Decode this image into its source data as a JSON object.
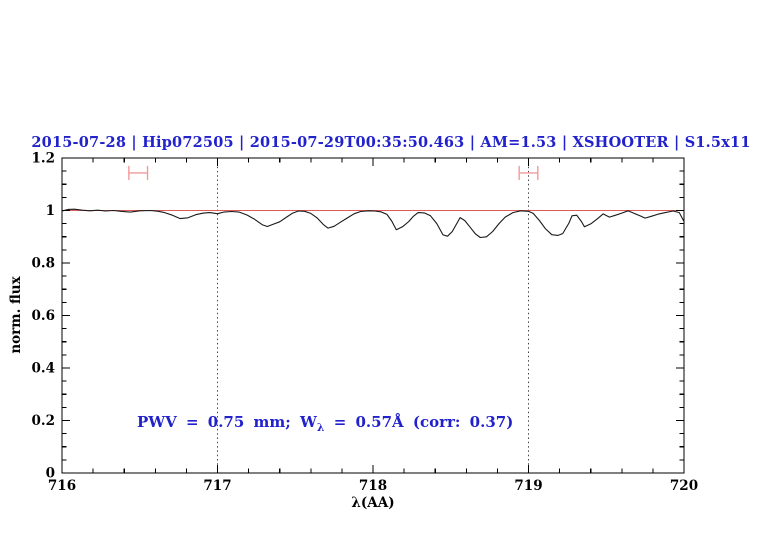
{
  "chart_data": {
    "type": "line",
    "title": "2015-07-28 | Hip072505 | 2015-07-29T00:35:50.463 | AM=1.53 | XSHOOTER | S1.5x11",
    "title_color": "#2222cc",
    "xlabel": "λ(AA)",
    "ylabel": "norm. flux",
    "xlim": [
      716,
      720
    ],
    "ylim": [
      0,
      1.2
    ],
    "grid": "off",
    "legend": "none",
    "x_major_ticks": [
      716,
      717,
      718,
      719,
      720
    ],
    "x_tick_labels": [
      "716",
      "717",
      "718",
      "719",
      "720"
    ],
    "x_minor_step": 0.2,
    "y_major_ticks": [
      0,
      0.2,
      0.4,
      0.6,
      0.8,
      1,
      1.2
    ],
    "y_tick_labels": [
      "0",
      "0.2",
      "0.4",
      "0.6",
      "0.8",
      "1",
      "1.2"
    ],
    "y_minor_step": 0.05,
    "dotted_guides_x": [
      717,
      719
    ],
    "guide_color": "#333333",
    "continuum_line": {
      "y": 1.0,
      "color": "#e05a5a"
    },
    "telluric_markers": {
      "color": "#f29a9a",
      "y": 1.143,
      "cap_half_height": 0.027,
      "items": [
        {
          "x_min": 716.43,
          "x_max": 716.55
        },
        {
          "x_min": 718.94,
          "x_max": 719.06
        }
      ]
    },
    "annotation": {
      "prefix": "PWV = 0.75 mm; W",
      "sub": "λ",
      "suffix": " = 0.57Å (corr: 0.37)",
      "color": "#2222cc"
    },
    "series": [
      {
        "name": "spectrum",
        "color": "#1a1a1a",
        "points": [
          [
            716.0,
            0.998
          ],
          [
            716.04,
            1.004
          ],
          [
            716.08,
            1.005
          ],
          [
            716.13,
            1.001
          ],
          [
            716.18,
            0.999
          ],
          [
            716.23,
            1.001
          ],
          [
            716.28,
            0.998
          ],
          [
            716.33,
            1.0
          ],
          [
            716.38,
            0.997
          ],
          [
            716.44,
            0.994
          ],
          [
            716.5,
            0.999
          ],
          [
            716.57,
            1.0
          ],
          [
            716.62,
            0.997
          ],
          [
            716.66,
            0.992
          ],
          [
            716.71,
            0.982
          ],
          [
            716.76,
            0.969
          ],
          [
            716.81,
            0.972
          ],
          [
            716.86,
            0.984
          ],
          [
            716.91,
            0.99
          ],
          [
            716.95,
            0.992
          ],
          [
            717.0,
            0.988
          ],
          [
            717.04,
            0.994
          ],
          [
            717.09,
            0.996
          ],
          [
            717.14,
            0.994
          ],
          [
            717.19,
            0.983
          ],
          [
            717.24,
            0.966
          ],
          [
            717.29,
            0.945
          ],
          [
            717.32,
            0.939
          ],
          [
            717.36,
            0.948
          ],
          [
            717.4,
            0.957
          ],
          [
            717.45,
            0.977
          ],
          [
            717.48,
            0.989
          ],
          [
            717.52,
            0.998
          ],
          [
            717.56,
            0.997
          ],
          [
            717.6,
            0.989
          ],
          [
            717.64,
            0.972
          ],
          [
            717.68,
            0.947
          ],
          [
            717.71,
            0.933
          ],
          [
            717.75,
            0.94
          ],
          [
            717.79,
            0.955
          ],
          [
            717.83,
            0.97
          ],
          [
            717.88,
            0.988
          ],
          [
            717.92,
            0.996
          ],
          [
            717.97,
            0.999
          ],
          [
            718.01,
            0.998
          ],
          [
            718.05,
            0.995
          ],
          [
            718.09,
            0.985
          ],
          [
            718.12,
            0.96
          ],
          [
            718.15,
            0.927
          ],
          [
            718.19,
            0.938
          ],
          [
            718.23,
            0.958
          ],
          [
            718.26,
            0.978
          ],
          [
            718.29,
            0.992
          ],
          [
            718.33,
            0.991
          ],
          [
            718.37,
            0.98
          ],
          [
            718.41,
            0.95
          ],
          [
            718.45,
            0.907
          ],
          [
            718.48,
            0.902
          ],
          [
            718.51,
            0.92
          ],
          [
            718.54,
            0.952
          ],
          [
            718.56,
            0.973
          ],
          [
            718.59,
            0.962
          ],
          [
            718.62,
            0.94
          ],
          [
            718.66,
            0.91
          ],
          [
            718.69,
            0.897
          ],
          [
            718.73,
            0.9
          ],
          [
            718.77,
            0.92
          ],
          [
            718.81,
            0.95
          ],
          [
            718.85,
            0.975
          ],
          [
            718.9,
            0.992
          ],
          [
            718.95,
            0.999
          ],
          [
            719.0,
            0.997
          ],
          [
            719.03,
            0.989
          ],
          [
            719.07,
            0.962
          ],
          [
            719.11,
            0.93
          ],
          [
            719.15,
            0.908
          ],
          [
            719.19,
            0.905
          ],
          [
            719.22,
            0.912
          ],
          [
            719.26,
            0.952
          ],
          [
            719.28,
            0.98
          ],
          [
            719.31,
            0.982
          ],
          [
            719.34,
            0.958
          ],
          [
            719.36,
            0.938
          ],
          [
            719.4,
            0.949
          ],
          [
            719.44,
            0.967
          ],
          [
            719.48,
            0.987
          ],
          [
            719.52,
            0.975
          ],
          [
            719.56,
            0.982
          ],
          [
            719.6,
            0.99
          ],
          [
            719.64,
            0.999
          ],
          [
            719.68,
            0.989
          ],
          [
            719.72,
            0.979
          ],
          [
            719.75,
            0.971
          ],
          [
            719.79,
            0.978
          ],
          [
            719.84,
            0.987
          ],
          [
            719.88,
            0.992
          ],
          [
            719.93,
            0.998
          ],
          [
            719.97,
            0.992
          ],
          [
            720.0,
            0.958
          ]
        ]
      }
    ]
  }
}
